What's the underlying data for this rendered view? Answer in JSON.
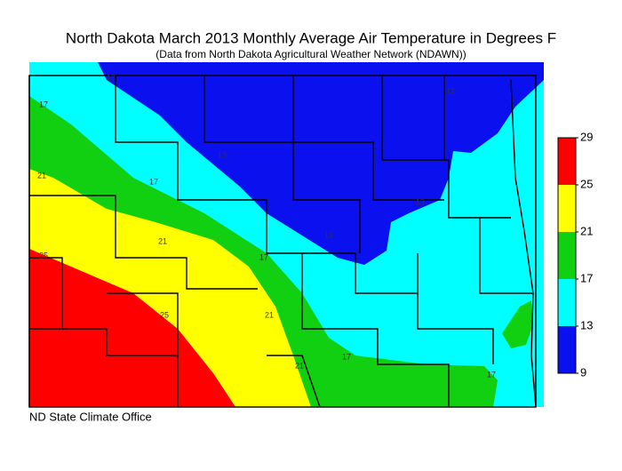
{
  "title": "North Dakota March 2013 Monthly Average Air Temperature in Degrees F",
  "subtitle": "(Data from North Dakota Agricultural Weather Network (NDAWN))",
  "footer": "ND State Climate Office",
  "legend": {
    "ticks": [
      9,
      13,
      17,
      21,
      25,
      29
    ],
    "colors": [
      "#0a10ee",
      "#00ffff",
      "#11d011",
      "#ffff00",
      "#ff0000"
    ]
  },
  "contour_labels": [
    "13",
    "13",
    "13",
    "12",
    "13",
    "17",
    "17",
    "17",
    "17",
    "17",
    "21",
    "21",
    "21",
    "21",
    "25",
    "25"
  ]
}
